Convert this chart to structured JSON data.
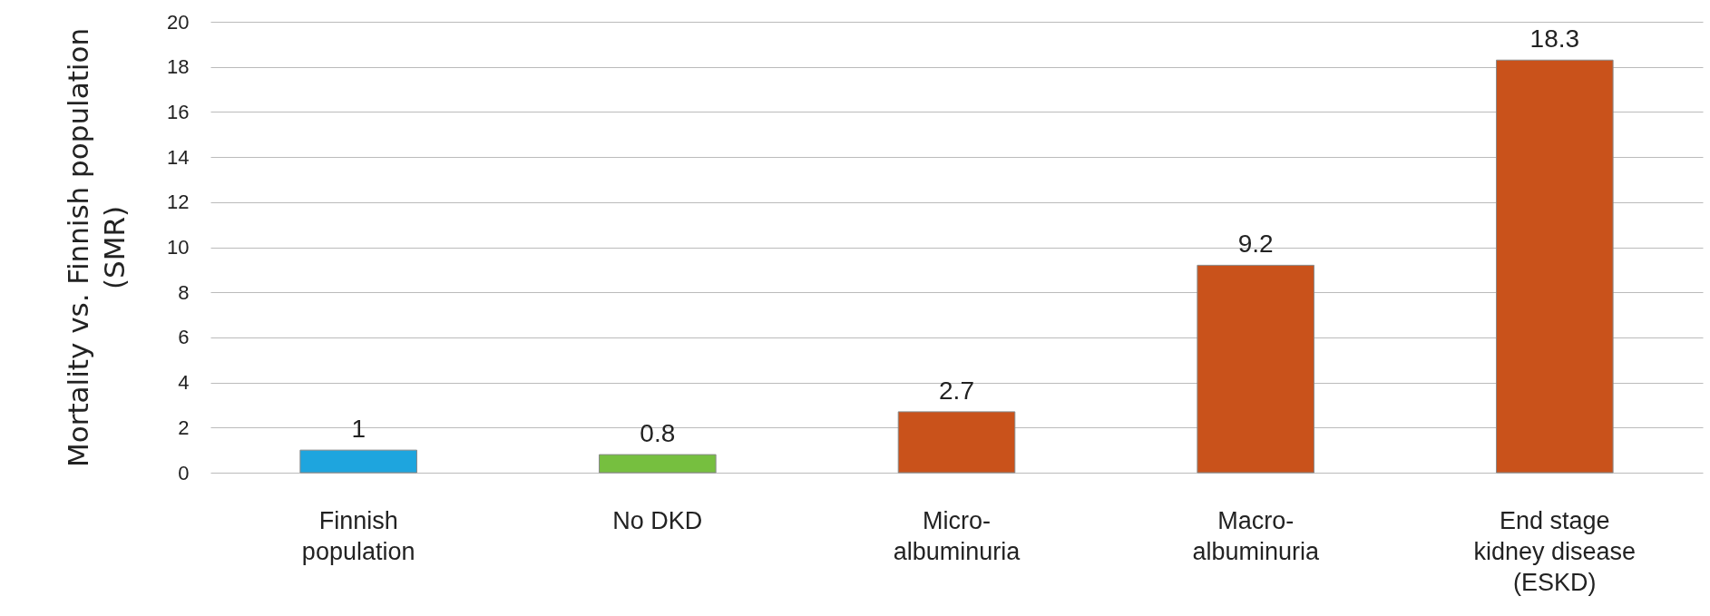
{
  "chart_data": {
    "type": "bar",
    "ylabel": "Mortality vs. Finnish population\n(SMR)",
    "categories": [
      "Finnish\npopulation",
      "No DKD",
      "Micro-\nalbuminuria",
      "Macro-\nalbuminuria",
      "End stage\nkidney disease\n(ESKD)"
    ],
    "values": [
      1,
      0.8,
      2.7,
      9.2,
      18.3
    ],
    "colors": [
      "#1ea5de",
      "#76bf3f",
      "#c9521b",
      "#c9521b",
      "#c9521b"
    ],
    "ylim": [
      0,
      20
    ],
    "yticks": [
      0,
      2,
      4,
      6,
      8,
      10,
      12,
      14,
      16,
      18,
      20
    ],
    "grid": "y",
    "data_labels": true
  }
}
